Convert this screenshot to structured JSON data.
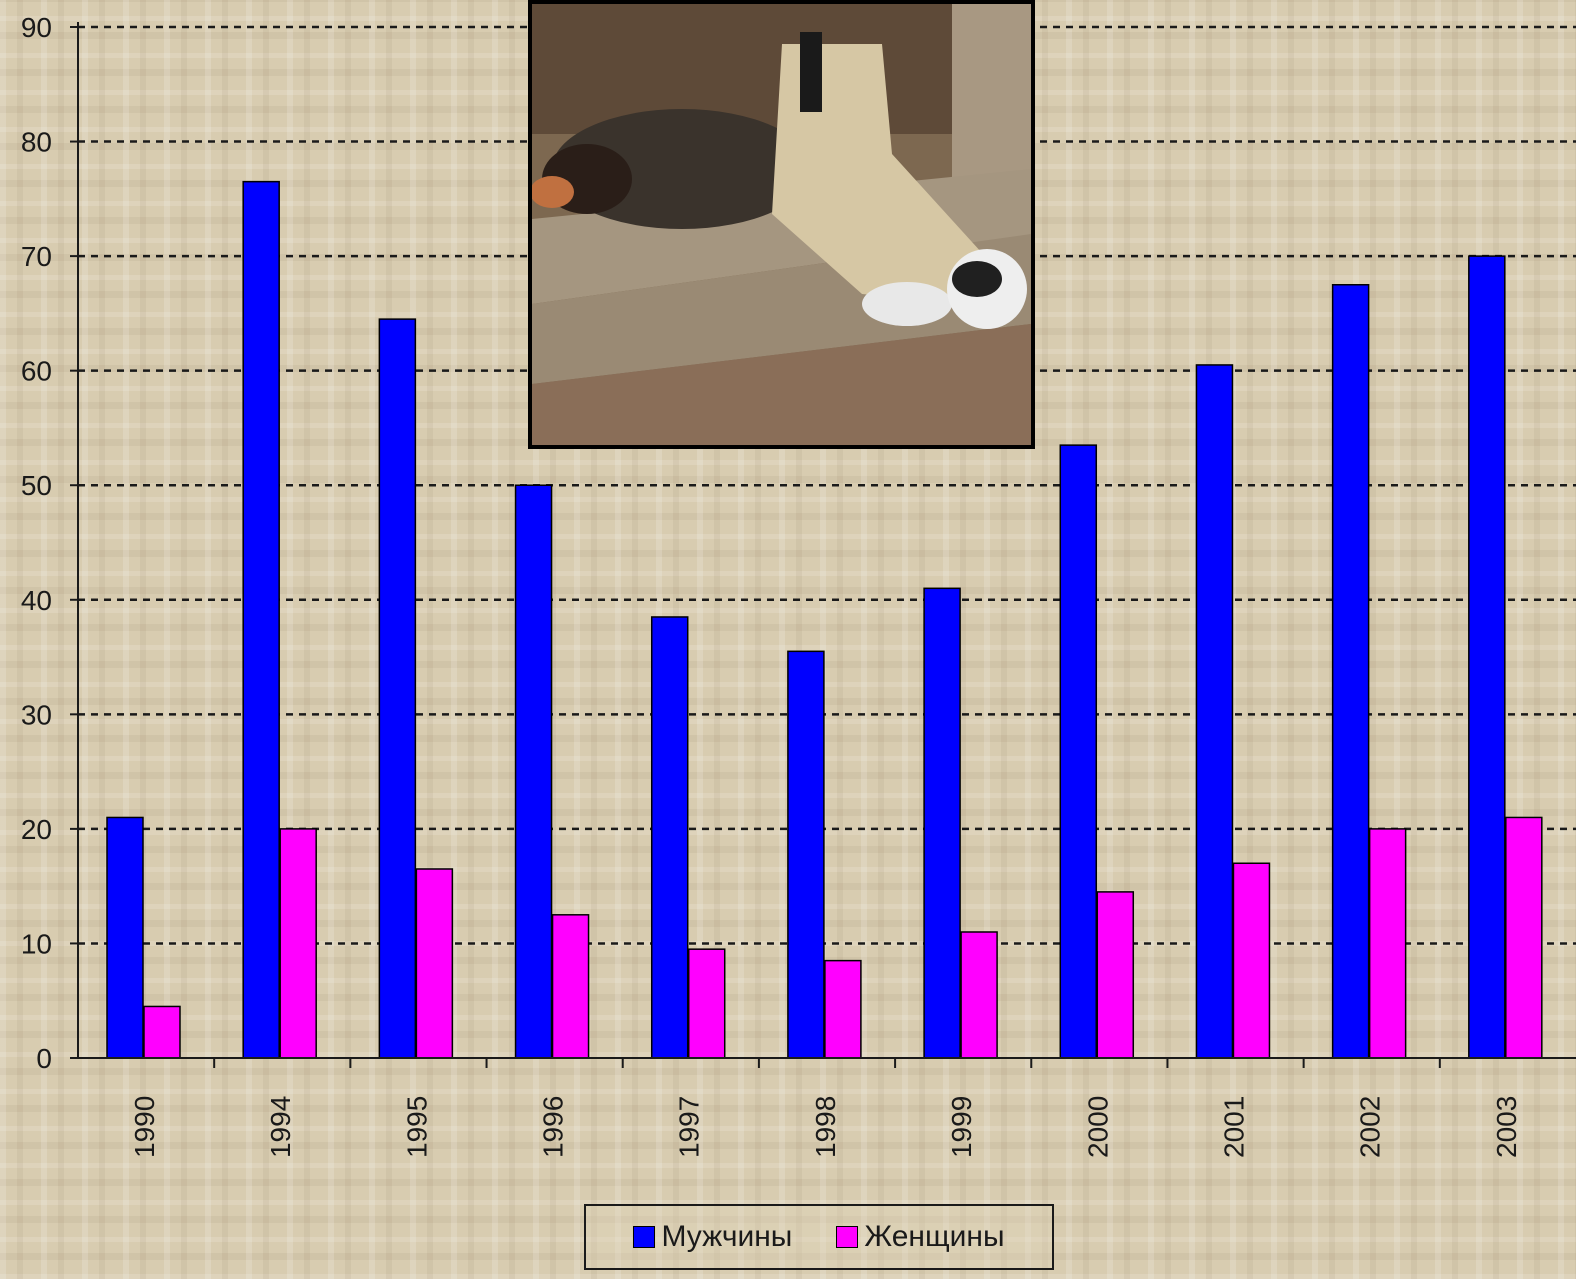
{
  "chart_data": {
    "type": "bar",
    "categories": [
      "1990",
      "1994",
      "1995",
      "1996",
      "1997",
      "1998",
      "1999",
      "2000",
      "2001",
      "2002",
      "2003"
    ],
    "series": [
      {
        "name": "Мужчины",
        "color": "#0000ff",
        "values": [
          21,
          76.5,
          64.5,
          50,
          38.5,
          35.5,
          41,
          53.5,
          60.5,
          67.5,
          70
        ]
      },
      {
        "name": "Женщины",
        "color": "#ff00ff",
        "values": [
          4.5,
          20,
          16.5,
          12.5,
          9.5,
          8.5,
          11,
          14.5,
          17,
          20,
          21
        ]
      }
    ],
    "ylim": [
      0,
      90
    ],
    "yticks": [
      "0",
      "10",
      "20",
      "30",
      "40",
      "50",
      "60",
      "70",
      "80",
      "90"
    ],
    "grid": true,
    "legend_position": "bottom-center"
  },
  "photo": {
    "subject": "person sleeping on stairs",
    "icon": "photo-sleeping-person"
  }
}
